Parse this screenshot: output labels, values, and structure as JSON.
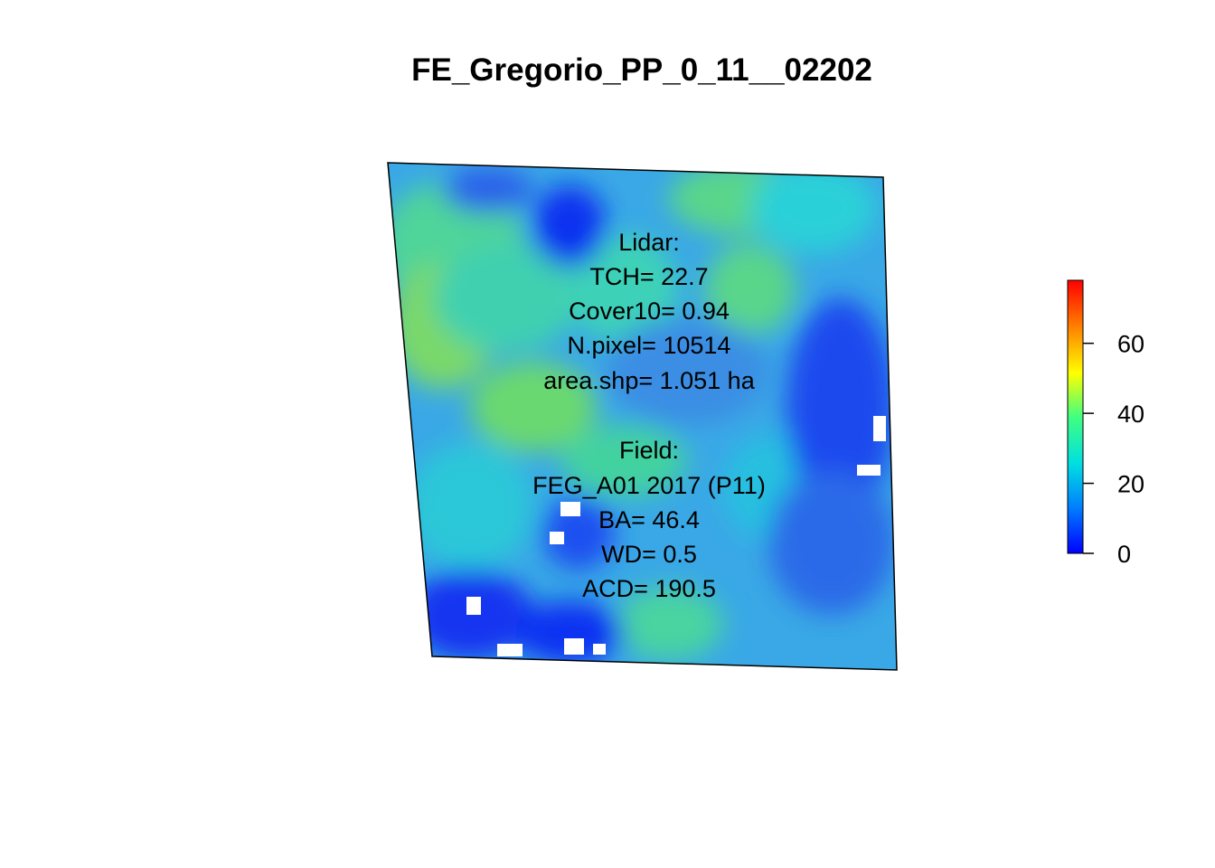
{
  "title": "FE_Gregorio_PP_0_11__02202",
  "lidar": {
    "header": "Lidar:",
    "tch": "TCH= 22.7",
    "cover10": "Cover10= 0.94",
    "npixel": "N.pixel= 10514",
    "area": "area.shp= 1.051 ha"
  },
  "field": {
    "header": "Field:",
    "plot": "FEG_A01 2017 (P11)",
    "ba": "BA= 46.4",
    "wd": "WD= 0.5",
    "acd": "ACD= 190.5"
  },
  "legend": {
    "min": 0,
    "max": 78,
    "ticks": [
      "0",
      "20",
      "40",
      "60"
    ],
    "tick_values": [
      0,
      20,
      40,
      60
    ],
    "palette": [
      "#0000ff",
      "#0080ff",
      "#00e0e0",
      "#40ff80",
      "#ffff00",
      "#ff8000",
      "#ff0000"
    ]
  },
  "raster": {
    "colors": {
      "deep_blue": "#0a1ee6",
      "blue": "#2a6ee0",
      "mid_blue": "#3aa0e8",
      "cyan": "#22cfe0",
      "teal_green": "#3cd6a8",
      "green": "#5ed86a",
      "no_data": "#ffffff"
    }
  }
}
